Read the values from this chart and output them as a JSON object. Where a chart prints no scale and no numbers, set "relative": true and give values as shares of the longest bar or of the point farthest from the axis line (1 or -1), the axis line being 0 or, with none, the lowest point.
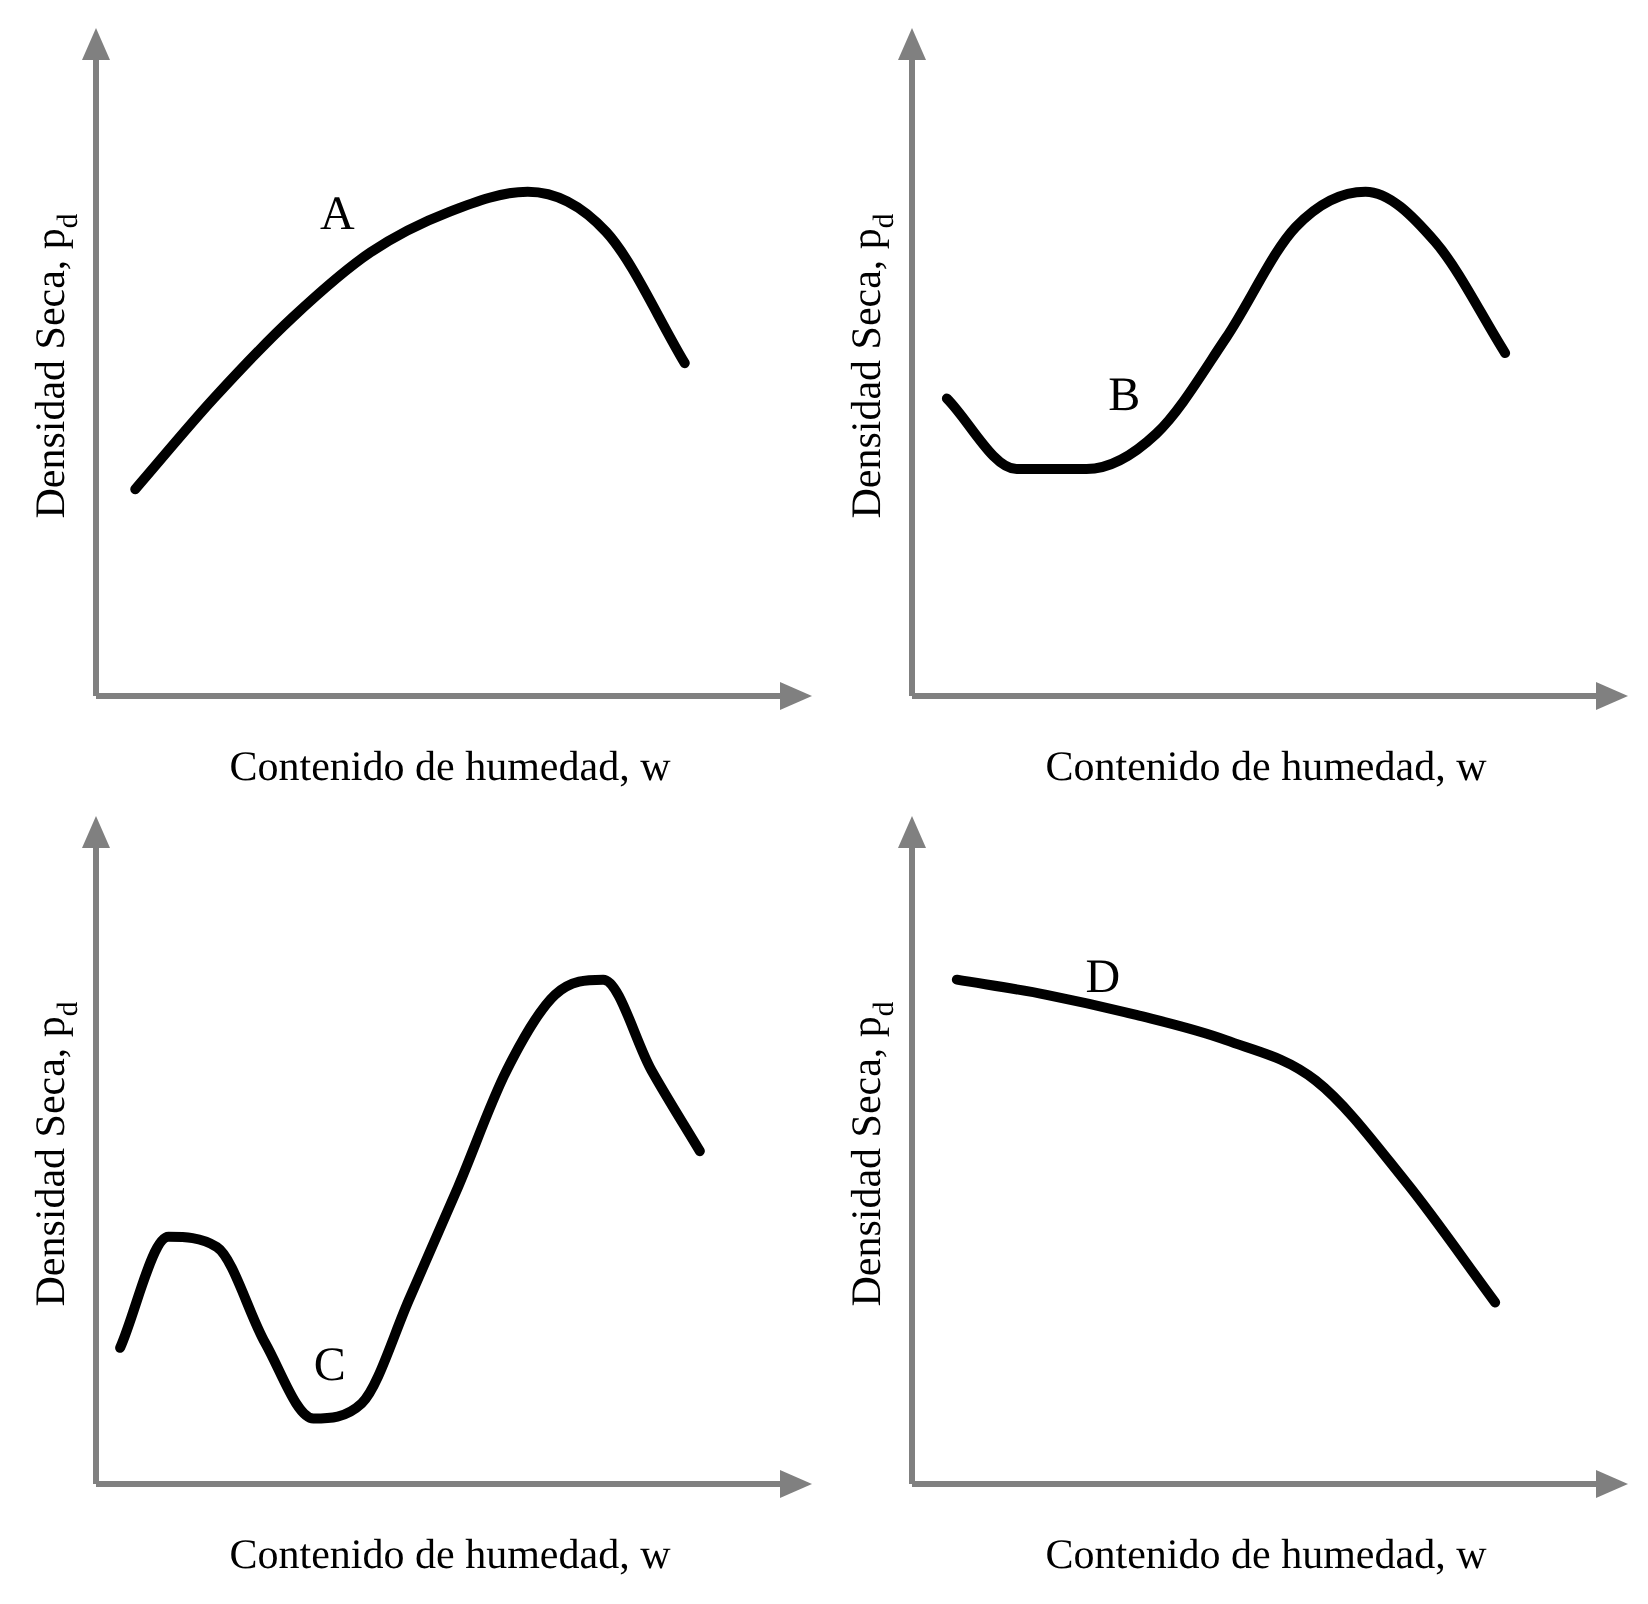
{
  "chart_data": [
    {
      "type": "line",
      "relative": true,
      "xlabel": "Contenido de humedad, w",
      "ylabel": "Densidad Seca, p$_{d}$",
      "annotations": [
        "A"
      ],
      "categories": [
        null,
        null,
        null,
        null,
        null,
        null,
        null,
        null
      ],
      "series": [
        {
          "color": "#000000",
          "values": [
            0.41,
            0.59,
            0.75,
            0.88,
            0.96,
            1.0,
            0.92,
            0.66
          ]
        }
      ],
      "marker": "none",
      "legend": false,
      "grid": false,
      "tick_labels": false
    },
    {
      "type": "line",
      "relative": true,
      "xlabel": "Contenido de humedad, w",
      "ylabel": "Densidad Seca, p$_{d}$",
      "annotations": [
        "B"
      ],
      "categories": [
        null,
        null,
        null,
        null,
        null,
        null,
        null,
        null,
        null
      ],
      "series": [
        {
          "color": "#000000",
          "values": [
            0.59,
            0.45,
            0.45,
            0.52,
            0.71,
            0.93,
            1.0,
            0.9,
            0.68
          ]
        }
      ],
      "marker": "none",
      "legend": false,
      "grid": false,
      "tick_labels": false
    },
    {
      "type": "line",
      "relative": true,
      "xlabel": "Contenido de humedad, w",
      "ylabel": "Densidad Seca, p$_{d}$",
      "annotations": [
        "C"
      ],
      "categories": [
        null,
        null,
        null,
        null,
        null,
        null,
        null,
        null,
        null,
        null,
        null,
        null,
        null
      ],
      "series": [
        {
          "color": "#000000",
          "values": [
            0.27,
            0.49,
            0.47,
            0.28,
            0.13,
            0.16,
            0.37,
            0.59,
            0.82,
            0.97,
            1.0,
            0.82,
            0.66
          ]
        }
      ],
      "marker": "none",
      "legend": false,
      "grid": false,
      "tick_labels": false
    },
    {
      "type": "line",
      "relative": true,
      "xlabel": "Contenido de humedad, w",
      "ylabel": "Densidad Seca, p$_{d}$",
      "annotations": [
        "D"
      ],
      "categories": [
        null,
        null,
        null,
        null,
        null,
        null,
        null
      ],
      "series": [
        {
          "color": "#000000",
          "values": [
            1.0,
            0.97,
            0.93,
            0.88,
            0.8,
            0.6,
            0.36
          ]
        }
      ],
      "marker": "none",
      "legend": false,
      "grid": false,
      "tick_labels": false
    }
  ]
}
